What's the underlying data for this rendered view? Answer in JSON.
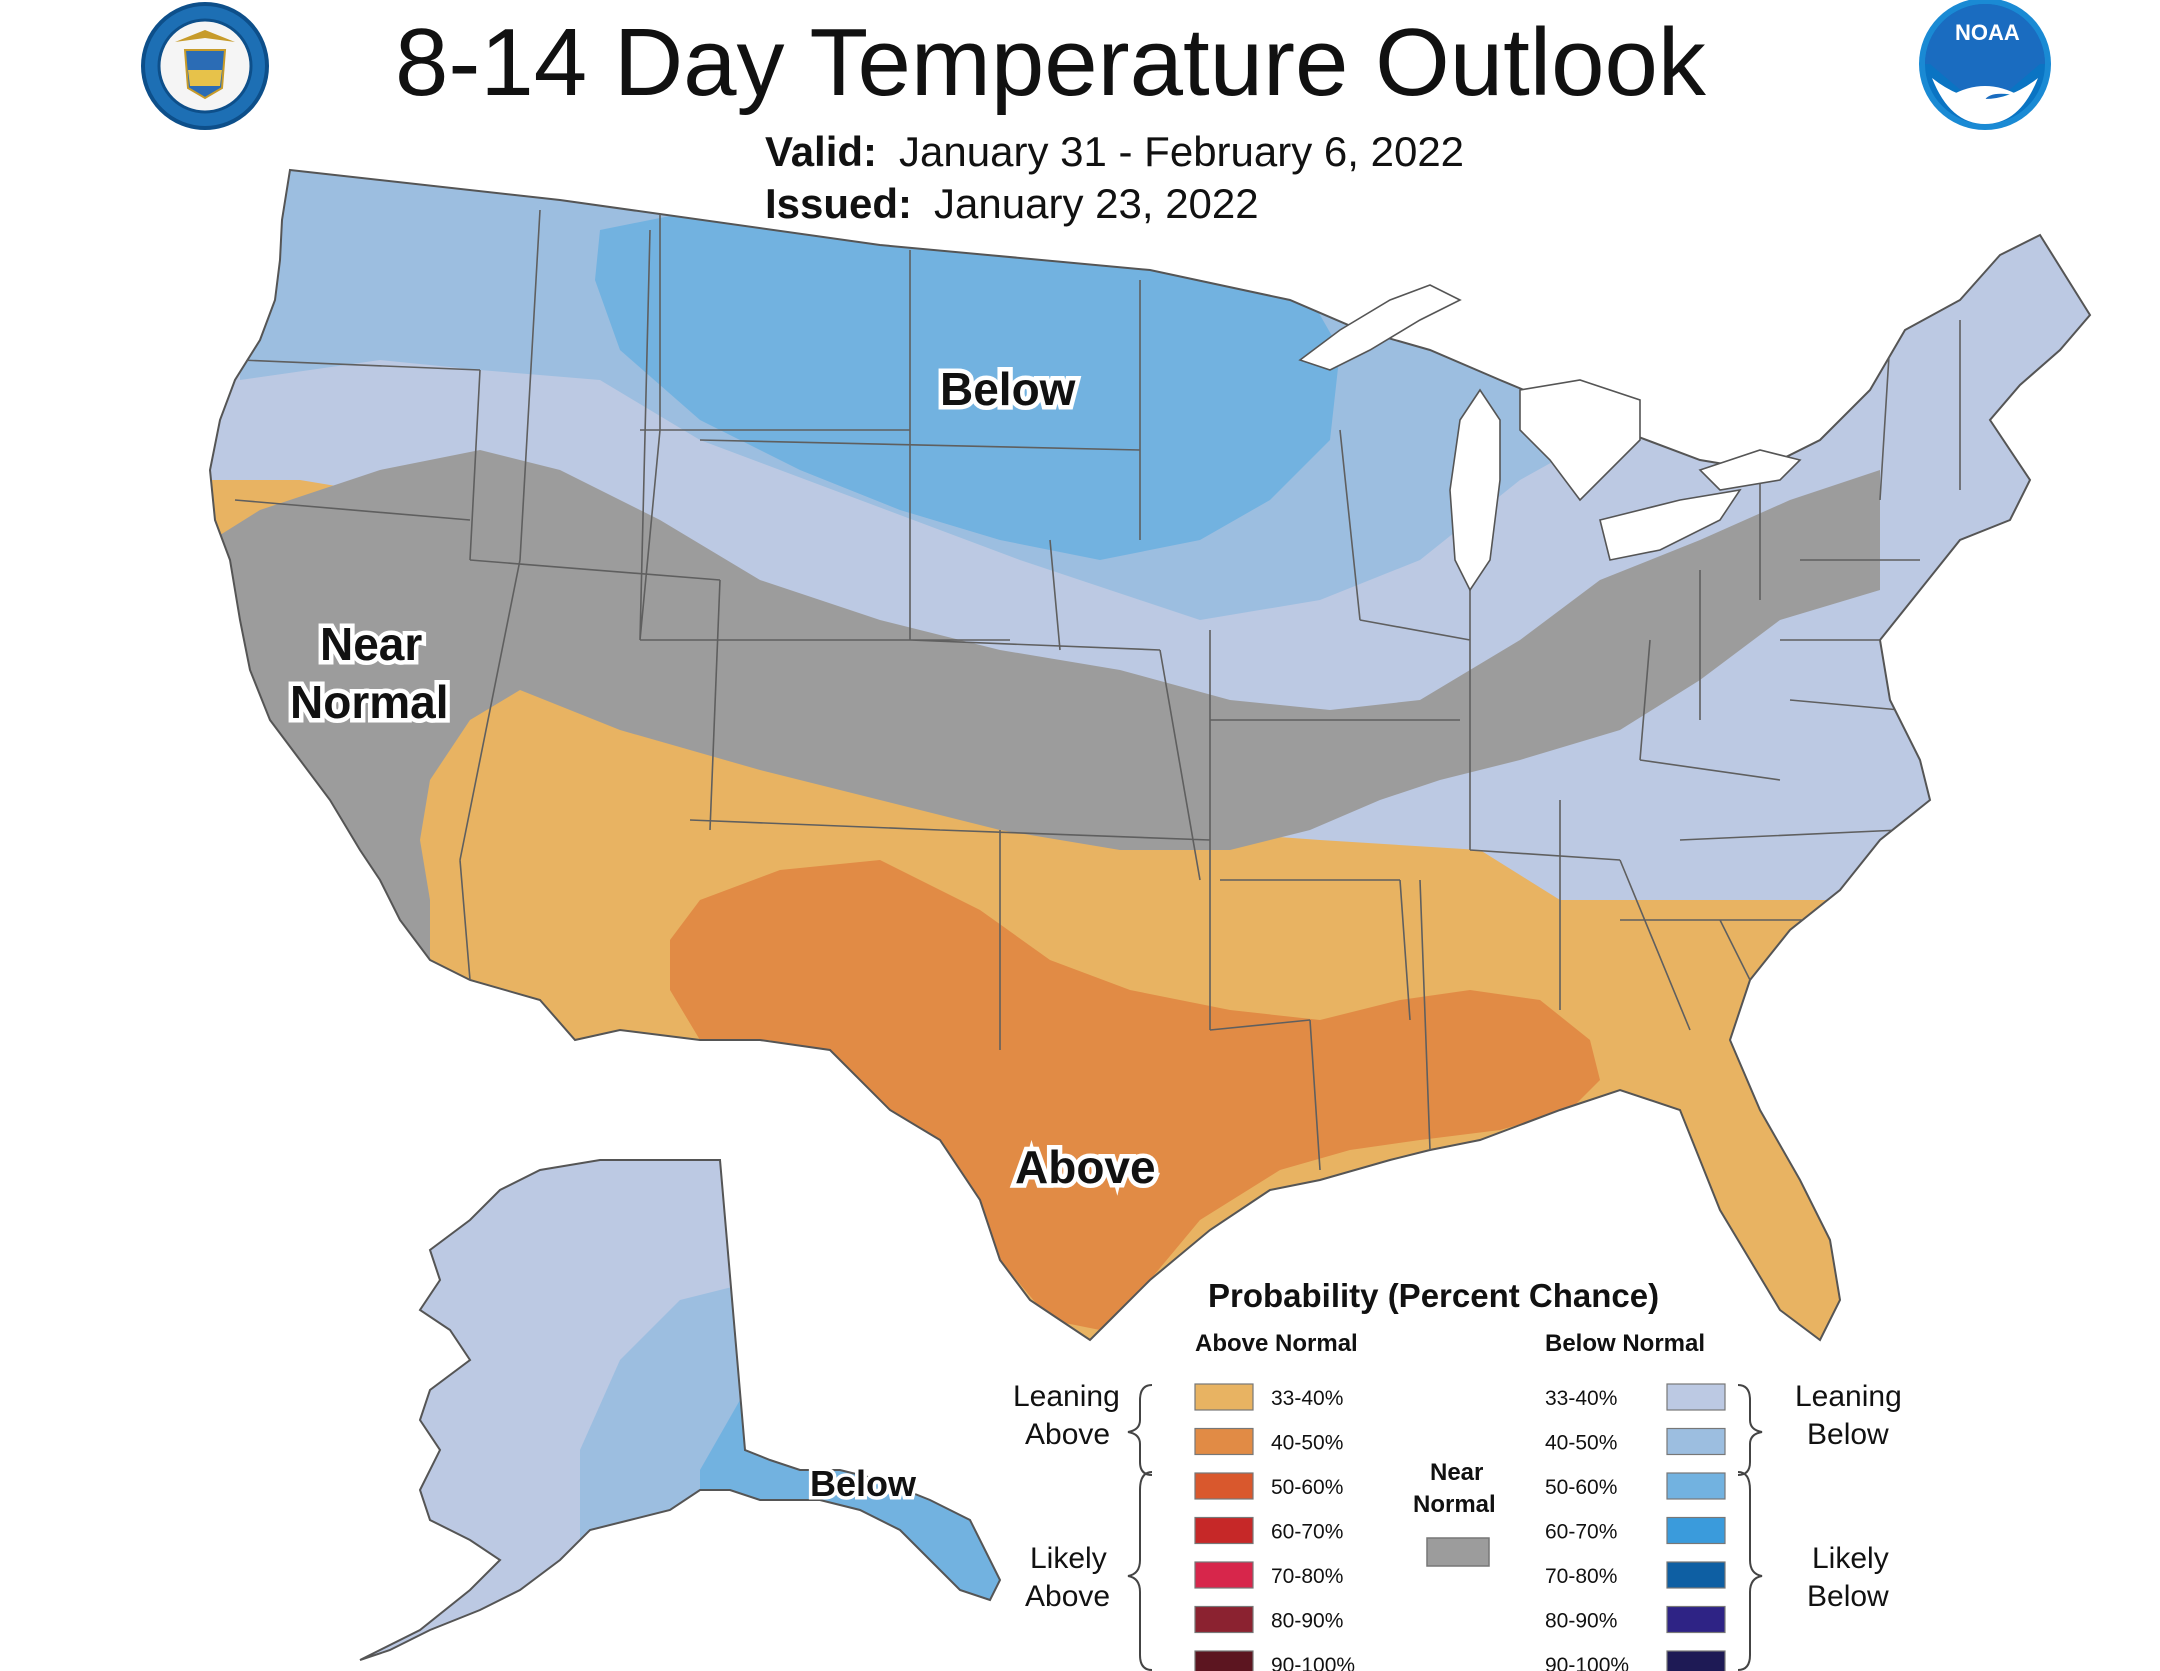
{
  "header": {
    "title": "8-14 Day Temperature Outlook",
    "valid_label": "Valid:",
    "valid_value": "January 31 - February 6, 2022",
    "issued_label": "Issued:",
    "issued_value": "January 23, 2022"
  },
  "logos": {
    "left": "department-of-commerce-seal",
    "right": "noaa-logo",
    "right_text": "NOAA"
  },
  "regions": {
    "below": "Below",
    "near_normal_line1": "Near",
    "near_normal_line2": "Normal",
    "above": "Above",
    "alaska_below": "Below"
  },
  "colors": {
    "above_33_40": "#E8B362",
    "above_40_50": "#E18B45",
    "above_50_60": "#D9582D",
    "above_60_70": "#C62828",
    "above_70_80": "#D7264B",
    "above_80_90": "#8B2230",
    "above_90_100": "#5C1520",
    "below_33_40": "#BCC9E3",
    "below_40_50": "#9CBEE0",
    "below_50_60": "#72B2E0",
    "below_60_70": "#3A9BDC",
    "below_70_80": "#0E5FA3",
    "below_80_90": "#2E2385",
    "below_90_100": "#1E1A55",
    "near_normal": "#9C9C9C"
  },
  "legend": {
    "title": "Probability (Percent Chance)",
    "above_header": "Above Normal",
    "below_header": "Below Normal",
    "leaning_above_1": "Leaning",
    "leaning_above_2": "Above",
    "likely_above_1": "Likely",
    "likely_above_2": "Above",
    "leaning_below_1": "Leaning",
    "leaning_below_2": "Below",
    "likely_below_1": "Likely",
    "likely_below_2": "Below",
    "near_normal_1": "Near",
    "near_normal_2": "Normal",
    "above_rows": [
      "33-40%",
      "40-50%",
      "50-60%",
      "60-70%",
      "70-80%",
      "80-90%",
      "90-100%"
    ],
    "below_rows": [
      "33-40%",
      "40-50%",
      "50-60%",
      "60-70%",
      "70-80%",
      "80-90%",
      "90-100%"
    ]
  }
}
